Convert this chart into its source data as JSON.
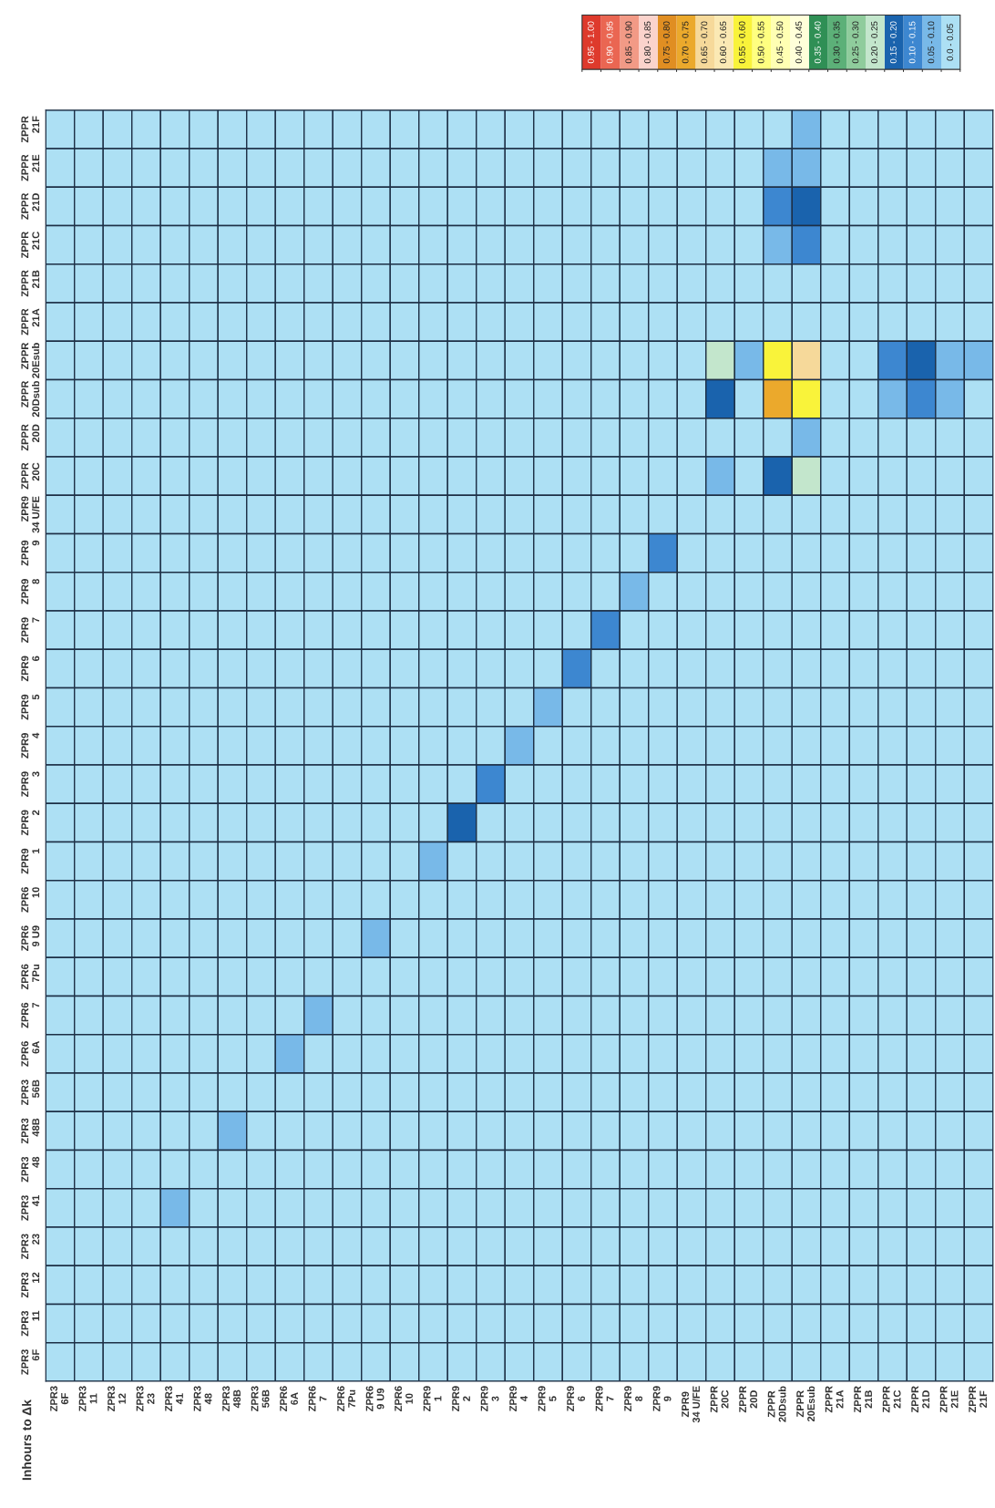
{
  "chart_data": {
    "type": "heatmap",
    "annotations": [
      "Inhours to Δk"
    ],
    "categories": [
      "ZPR3\n6F",
      "ZPR3\n11",
      "ZPR3\n12",
      "ZPR3\n23",
      "ZPR3\n41",
      "ZPR3\n48",
      "ZPR3\n48B",
      "ZPR3\n56B",
      "ZPR6\n6A",
      "ZPR6\n7",
      "ZPR6\n7Pu",
      "ZPR6\n9 U9",
      "ZPR6\n10",
      "ZPR9\n1",
      "ZPR9\n2",
      "ZPR9\n3",
      "ZPR9\n4",
      "ZPR9\n5",
      "ZPR9\n6",
      "ZPR9\n7",
      "ZPR9\n8",
      "ZPR9\n9",
      "ZPR9\n34 U/FE",
      "ZPPR\n20C",
      "ZPPR\n20D",
      "ZPPR\n20Dsub",
      "ZPPR\n20Esub",
      "ZPPR\n21A",
      "ZPPR\n21B",
      "ZPPR\n21C",
      "ZPPR\n21D",
      "ZPPR\n21E",
      "ZPPR\n21F"
    ],
    "y_categories": [
      "ZPPR\n21F",
      "ZPPR\n21E",
      "ZPPR\n21D",
      "ZPPR\n21C",
      "ZPPR\n21B",
      "ZPPR\n21A",
      "ZPPR\n20Esub",
      "ZPPR\n20Dsub",
      "ZPPR\n20D",
      "ZPPR\n20C",
      "ZPR9\n34 U/FE",
      "ZPR9\n9",
      "ZPR9\n8",
      "ZPR9\n7",
      "ZPR9\n6",
      "ZPR9\n5",
      "ZPR9\n4",
      "ZPR9\n3",
      "ZPR9\n2",
      "ZPR9\n1",
      "ZPR6\n10",
      "ZPR6\n9 U9",
      "ZPR6\n7Pu",
      "ZPR6\n7",
      "ZPR6\n6A",
      "ZPR3\n56B",
      "ZPR3\n48B",
      "ZPR3\n48",
      "ZPR3\n41",
      "ZPR3\n23",
      "ZPR3\n12",
      "ZPR3\n11",
      "ZPR3\n6F"
    ],
    "cells": [
      [
        0.025,
        0.025,
        0.025,
        0.025,
        0.025,
        0.025,
        0.025,
        0.025,
        0.025,
        0.025,
        0.025,
        0.025,
        0.025,
        0.025,
        0.025,
        0.025,
        0.025,
        0.025,
        0.025,
        0.025,
        0.025,
        0.025,
        0.025,
        0.025,
        0.025,
        0.025,
        0.075,
        0.025,
        0.025,
        0.025,
        0.025,
        0.025,
        0.025
      ],
      [
        0.025,
        0.025,
        0.025,
        0.025,
        0.025,
        0.025,
        0.025,
        0.025,
        0.025,
        0.025,
        0.025,
        0.025,
        0.025,
        0.025,
        0.025,
        0.025,
        0.025,
        0.025,
        0.025,
        0.025,
        0.025,
        0.025,
        0.025,
        0.025,
        0.025,
        0.075,
        0.075,
        0.025,
        0.025,
        0.025,
        0.025,
        0.025,
        0.025
      ],
      [
        0.025,
        0.025,
        0.025,
        0.025,
        0.025,
        0.025,
        0.025,
        0.025,
        0.025,
        0.025,
        0.025,
        0.025,
        0.025,
        0.025,
        0.025,
        0.025,
        0.025,
        0.025,
        0.025,
        0.025,
        0.025,
        0.025,
        0.025,
        0.025,
        0.025,
        0.125,
        0.175,
        0.025,
        0.025,
        0.025,
        0.025,
        0.025,
        0.025
      ],
      [
        0.025,
        0.025,
        0.025,
        0.025,
        0.025,
        0.025,
        0.025,
        0.025,
        0.025,
        0.025,
        0.025,
        0.025,
        0.025,
        0.025,
        0.025,
        0.025,
        0.025,
        0.025,
        0.025,
        0.025,
        0.025,
        0.025,
        0.025,
        0.025,
        0.025,
        0.075,
        0.125,
        0.025,
        0.025,
        0.025,
        0.025,
        0.025,
        0.025
      ],
      [
        0.025,
        0.025,
        0.025,
        0.025,
        0.025,
        0.025,
        0.025,
        0.025,
        0.025,
        0.025,
        0.025,
        0.025,
        0.025,
        0.025,
        0.025,
        0.025,
        0.025,
        0.025,
        0.025,
        0.025,
        0.025,
        0.025,
        0.025,
        0.025,
        0.025,
        0.025,
        0.025,
        0.025,
        0.025,
        0.025,
        0.025,
        0.025,
        0.025
      ],
      [
        0.025,
        0.025,
        0.025,
        0.025,
        0.025,
        0.025,
        0.025,
        0.025,
        0.025,
        0.025,
        0.025,
        0.025,
        0.025,
        0.025,
        0.025,
        0.025,
        0.025,
        0.025,
        0.025,
        0.025,
        0.025,
        0.025,
        0.025,
        0.025,
        0.025,
        0.025,
        0.025,
        0.025,
        0.025,
        0.025,
        0.025,
        0.025,
        0.025
      ],
      [
        0.025,
        0.025,
        0.025,
        0.025,
        0.025,
        0.025,
        0.025,
        0.025,
        0.025,
        0.025,
        0.025,
        0.025,
        0.025,
        0.025,
        0.025,
        0.025,
        0.025,
        0.025,
        0.025,
        0.025,
        0.025,
        0.025,
        0.025,
        0.225,
        0.075,
        0.575,
        0.675,
        0.025,
        0.025,
        0.125,
        0.175,
        0.075,
        0.075
      ],
      [
        0.025,
        0.025,
        0.025,
        0.025,
        0.025,
        0.025,
        0.025,
        0.025,
        0.025,
        0.025,
        0.025,
        0.025,
        0.025,
        0.025,
        0.025,
        0.025,
        0.025,
        0.025,
        0.025,
        0.025,
        0.025,
        0.025,
        0.025,
        0.175,
        0.025,
        0.725,
        0.575,
        0.025,
        0.025,
        0.075,
        0.125,
        0.075,
        0.025
      ],
      [
        0.025,
        0.025,
        0.025,
        0.025,
        0.025,
        0.025,
        0.025,
        0.025,
        0.025,
        0.025,
        0.025,
        0.025,
        0.025,
        0.025,
        0.025,
        0.025,
        0.025,
        0.025,
        0.025,
        0.025,
        0.025,
        0.025,
        0.025,
        0.025,
        0.025,
        0.025,
        0.075,
        0.025,
        0.025,
        0.025,
        0.025,
        0.025,
        0.025
      ],
      [
        0.025,
        0.025,
        0.025,
        0.025,
        0.025,
        0.025,
        0.025,
        0.025,
        0.025,
        0.025,
        0.025,
        0.025,
        0.025,
        0.025,
        0.025,
        0.025,
        0.025,
        0.025,
        0.025,
        0.025,
        0.025,
        0.025,
        0.025,
        0.075,
        0.025,
        0.175,
        0.225,
        0.025,
        0.025,
        0.025,
        0.025,
        0.025,
        0.025
      ],
      [
        0.025,
        0.025,
        0.025,
        0.025,
        0.025,
        0.025,
        0.025,
        0.025,
        0.025,
        0.025,
        0.025,
        0.025,
        0.025,
        0.025,
        0.025,
        0.025,
        0.025,
        0.025,
        0.025,
        0.025,
        0.025,
        0.025,
        0.025,
        0.025,
        0.025,
        0.025,
        0.025,
        0.025,
        0.025,
        0.025,
        0.025,
        0.025,
        0.025
      ],
      [
        0.025,
        0.025,
        0.025,
        0.025,
        0.025,
        0.025,
        0.025,
        0.025,
        0.025,
        0.025,
        0.025,
        0.025,
        0.025,
        0.025,
        0.025,
        0.025,
        0.025,
        0.025,
        0.025,
        0.025,
        0.025,
        0.125,
        0.025,
        0.025,
        0.025,
        0.025,
        0.025,
        0.025,
        0.025,
        0.025,
        0.025,
        0.025,
        0.025
      ],
      [
        0.025,
        0.025,
        0.025,
        0.025,
        0.025,
        0.025,
        0.025,
        0.025,
        0.025,
        0.025,
        0.025,
        0.025,
        0.025,
        0.025,
        0.025,
        0.025,
        0.025,
        0.025,
        0.025,
        0.025,
        0.075,
        0.025,
        0.025,
        0.025,
        0.025,
        0.025,
        0.025,
        0.025,
        0.025,
        0.025,
        0.025,
        0.025,
        0.025
      ],
      [
        0.025,
        0.025,
        0.025,
        0.025,
        0.025,
        0.025,
        0.025,
        0.025,
        0.025,
        0.025,
        0.025,
        0.025,
        0.025,
        0.025,
        0.025,
        0.025,
        0.025,
        0.025,
        0.025,
        0.125,
        0.025,
        0.025,
        0.025,
        0.025,
        0.025,
        0.025,
        0.025,
        0.025,
        0.025,
        0.025,
        0.025,
        0.025,
        0.025
      ],
      [
        0.025,
        0.025,
        0.025,
        0.025,
        0.025,
        0.025,
        0.025,
        0.025,
        0.025,
        0.025,
        0.025,
        0.025,
        0.025,
        0.025,
        0.025,
        0.025,
        0.025,
        0.025,
        0.125,
        0.025,
        0.025,
        0.025,
        0.025,
        0.025,
        0.025,
        0.025,
        0.025,
        0.025,
        0.025,
        0.025,
        0.025,
        0.025,
        0.025
      ],
      [
        0.025,
        0.025,
        0.025,
        0.025,
        0.025,
        0.025,
        0.025,
        0.025,
        0.025,
        0.025,
        0.025,
        0.025,
        0.025,
        0.025,
        0.025,
        0.025,
        0.025,
        0.075,
        0.025,
        0.025,
        0.025,
        0.025,
        0.025,
        0.025,
        0.025,
        0.025,
        0.025,
        0.025,
        0.025,
        0.025,
        0.025,
        0.025,
        0.025
      ],
      [
        0.025,
        0.025,
        0.025,
        0.025,
        0.025,
        0.025,
        0.025,
        0.025,
        0.025,
        0.025,
        0.025,
        0.025,
        0.025,
        0.025,
        0.025,
        0.025,
        0.075,
        0.025,
        0.025,
        0.025,
        0.025,
        0.025,
        0.025,
        0.025,
        0.025,
        0.025,
        0.025,
        0.025,
        0.025,
        0.025,
        0.025,
        0.025,
        0.025
      ],
      [
        0.025,
        0.025,
        0.025,
        0.025,
        0.025,
        0.025,
        0.025,
        0.025,
        0.025,
        0.025,
        0.025,
        0.025,
        0.025,
        0.025,
        0.025,
        0.125,
        0.025,
        0.025,
        0.025,
        0.025,
        0.025,
        0.025,
        0.025,
        0.025,
        0.025,
        0.025,
        0.025,
        0.025,
        0.025,
        0.025,
        0.025,
        0.025,
        0.025
      ],
      [
        0.025,
        0.025,
        0.025,
        0.025,
        0.025,
        0.025,
        0.025,
        0.025,
        0.025,
        0.025,
        0.025,
        0.025,
        0.025,
        0.025,
        0.175,
        0.025,
        0.025,
        0.025,
        0.025,
        0.025,
        0.025,
        0.025,
        0.025,
        0.025,
        0.025,
        0.025,
        0.025,
        0.025,
        0.025,
        0.025,
        0.025,
        0.025,
        0.025
      ],
      [
        0.025,
        0.025,
        0.025,
        0.025,
        0.025,
        0.025,
        0.025,
        0.025,
        0.025,
        0.025,
        0.025,
        0.025,
        0.025,
        0.075,
        0.025,
        0.025,
        0.025,
        0.025,
        0.025,
        0.025,
        0.025,
        0.025,
        0.025,
        0.025,
        0.025,
        0.025,
        0.025,
        0.025,
        0.025,
        0.025,
        0.025,
        0.025,
        0.025
      ],
      [
        0.025,
        0.025,
        0.025,
        0.025,
        0.025,
        0.025,
        0.025,
        0.025,
        0.025,
        0.025,
        0.025,
        0.025,
        0.025,
        0.025,
        0.025,
        0.025,
        0.025,
        0.025,
        0.025,
        0.025,
        0.025,
        0.025,
        0.025,
        0.025,
        0.025,
        0.025,
        0.025,
        0.025,
        0.025,
        0.025,
        0.025,
        0.025,
        0.025
      ],
      [
        0.025,
        0.025,
        0.025,
        0.025,
        0.025,
        0.025,
        0.025,
        0.025,
        0.025,
        0.025,
        0.025,
        0.075,
        0.025,
        0.025,
        0.025,
        0.025,
        0.025,
        0.025,
        0.025,
        0.025,
        0.025,
        0.025,
        0.025,
        0.025,
        0.025,
        0.025,
        0.025,
        0.025,
        0.025,
        0.025,
        0.025,
        0.025,
        0.025
      ],
      [
        0.025,
        0.025,
        0.025,
        0.025,
        0.025,
        0.025,
        0.025,
        0.025,
        0.025,
        0.025,
        0.025,
        0.025,
        0.025,
        0.025,
        0.025,
        0.025,
        0.025,
        0.025,
        0.025,
        0.025,
        0.025,
        0.025,
        0.025,
        0.025,
        0.025,
        0.025,
        0.025,
        0.025,
        0.025,
        0.025,
        0.025,
        0.025,
        0.025
      ],
      [
        0.025,
        0.025,
        0.025,
        0.025,
        0.025,
        0.025,
        0.025,
        0.025,
        0.025,
        0.075,
        0.025,
        0.025,
        0.025,
        0.025,
        0.025,
        0.025,
        0.025,
        0.025,
        0.025,
        0.025,
        0.025,
        0.025,
        0.025,
        0.025,
        0.025,
        0.025,
        0.025,
        0.025,
        0.025,
        0.025,
        0.025,
        0.025,
        0.025
      ],
      [
        0.025,
        0.025,
        0.025,
        0.025,
        0.025,
        0.025,
        0.025,
        0.025,
        0.075,
        0.025,
        0.025,
        0.025,
        0.025,
        0.025,
        0.025,
        0.025,
        0.025,
        0.025,
        0.025,
        0.025,
        0.025,
        0.025,
        0.025,
        0.025,
        0.025,
        0.025,
        0.025,
        0.025,
        0.025,
        0.025,
        0.025,
        0.025,
        0.025
      ],
      [
        0.025,
        0.025,
        0.025,
        0.025,
        0.025,
        0.025,
        0.025,
        0.025,
        0.025,
        0.025,
        0.025,
        0.025,
        0.025,
        0.025,
        0.025,
        0.025,
        0.025,
        0.025,
        0.025,
        0.025,
        0.025,
        0.025,
        0.025,
        0.025,
        0.025,
        0.025,
        0.025,
        0.025,
        0.025,
        0.025,
        0.025,
        0.025,
        0.025
      ],
      [
        0.025,
        0.025,
        0.025,
        0.025,
        0.025,
        0.025,
        0.075,
        0.025,
        0.025,
        0.025,
        0.025,
        0.025,
        0.025,
        0.025,
        0.025,
        0.025,
        0.025,
        0.025,
        0.025,
        0.025,
        0.025,
        0.025,
        0.025,
        0.025,
        0.025,
        0.025,
        0.025,
        0.025,
        0.025,
        0.025,
        0.025,
        0.025,
        0.025
      ],
      [
        0.025,
        0.025,
        0.025,
        0.025,
        0.025,
        0.025,
        0.025,
        0.025,
        0.025,
        0.025,
        0.025,
        0.025,
        0.025,
        0.025,
        0.025,
        0.025,
        0.025,
        0.025,
        0.025,
        0.025,
        0.025,
        0.025,
        0.025,
        0.025,
        0.025,
        0.025,
        0.025,
        0.025,
        0.025,
        0.025,
        0.025,
        0.025,
        0.025
      ],
      [
        0.025,
        0.025,
        0.025,
        0.025,
        0.075,
        0.025,
        0.025,
        0.025,
        0.025,
        0.025,
        0.025,
        0.025,
        0.025,
        0.025,
        0.025,
        0.025,
        0.025,
        0.025,
        0.025,
        0.025,
        0.025,
        0.025,
        0.025,
        0.025,
        0.025,
        0.025,
        0.025,
        0.025,
        0.025,
        0.025,
        0.025,
        0.025,
        0.025
      ],
      [
        0.025,
        0.025,
        0.025,
        0.025,
        0.025,
        0.025,
        0.025,
        0.025,
        0.025,
        0.025,
        0.025,
        0.025,
        0.025,
        0.025,
        0.025,
        0.025,
        0.025,
        0.025,
        0.025,
        0.025,
        0.025,
        0.025,
        0.025,
        0.025,
        0.025,
        0.025,
        0.025,
        0.025,
        0.025,
        0.025,
        0.025,
        0.025,
        0.025
      ],
      [
        0.025,
        0.025,
        0.025,
        0.025,
        0.025,
        0.025,
        0.025,
        0.025,
        0.025,
        0.025,
        0.025,
        0.025,
        0.025,
        0.025,
        0.025,
        0.025,
        0.025,
        0.025,
        0.025,
        0.025,
        0.025,
        0.025,
        0.025,
        0.025,
        0.025,
        0.025,
        0.025,
        0.025,
        0.025,
        0.025,
        0.025,
        0.025,
        0.025
      ],
      [
        0.025,
        0.025,
        0.025,
        0.025,
        0.025,
        0.025,
        0.025,
        0.025,
        0.025,
        0.025,
        0.025,
        0.025,
        0.025,
        0.025,
        0.025,
        0.025,
        0.025,
        0.025,
        0.025,
        0.025,
        0.025,
        0.025,
        0.025,
        0.025,
        0.025,
        0.025,
        0.025,
        0.025,
        0.025,
        0.025,
        0.025,
        0.025,
        0.025
      ],
      [
        0.025,
        0.025,
        0.025,
        0.025,
        0.025,
        0.025,
        0.025,
        0.025,
        0.025,
        0.025,
        0.025,
        0.025,
        0.025,
        0.025,
        0.025,
        0.025,
        0.025,
        0.025,
        0.025,
        0.025,
        0.025,
        0.025,
        0.025,
        0.025,
        0.025,
        0.025,
        0.025,
        0.025,
        0.025,
        0.025,
        0.025,
        0.025,
        0.025
      ]
    ],
    "clim": [
      1.0,
      0.0
    ],
    "cticks": [
      {
        "value": 0.975,
        "label": "0.95 - 1.00"
      },
      {
        "value": 0.925,
        "label": "0.90 - 0.95"
      },
      {
        "value": 0.875,
        "label": "0.85 - 0.90"
      },
      {
        "value": 0.825,
        "label": "0.80 - 0.85"
      },
      {
        "value": 0.775,
        "label": "0.75 - 0.80"
      },
      {
        "value": 0.725,
        "label": "0.70 - 0.75"
      },
      {
        "value": 0.675,
        "label": "0.65 - 0.70"
      },
      {
        "value": 0.625,
        "label": "0.60 - 0.65"
      },
      {
        "value": 0.575,
        "label": "0.55 - 0.60"
      },
      {
        "value": 0.525,
        "label": "0.50 - 0.55"
      },
      {
        "value": 0.475,
        "label": "0.45 - 0.50"
      },
      {
        "value": 0.425,
        "label": "0.40 - 0.45"
      },
      {
        "value": 0.375,
        "label": "0.35 - 0.40"
      },
      {
        "value": 0.325,
        "label": "0.30 - 0.35"
      },
      {
        "value": 0.275,
        "label": "0.25 - 0.30"
      },
      {
        "value": 0.225,
        "label": "0.20 - 0.25"
      },
      {
        "value": 0.175,
        "label": "0.15 - 0.20"
      },
      {
        "value": 0.125,
        "label": "0.10 - 0.15"
      },
      {
        "value": 0.075,
        "label": "0.05 - 0.10"
      },
      {
        "value": 0.025,
        "label": "0.0 - 0.05"
      }
    ]
  }
}
